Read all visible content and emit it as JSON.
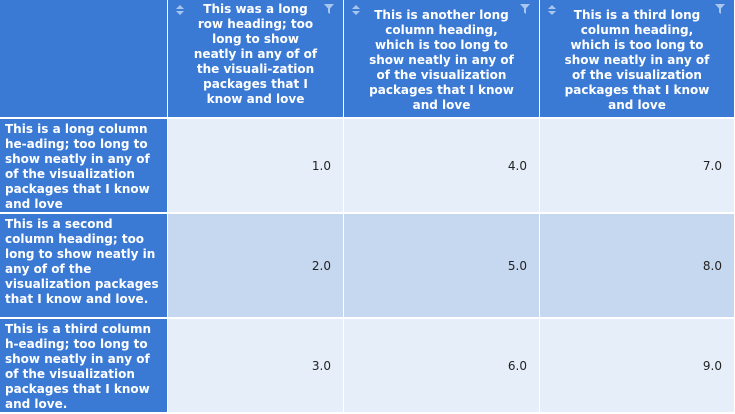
{
  "table": {
    "columns": [
      {
        "label": "This was a long row heading; too long to show neatly in any of of the visuali-zation packages that I know and love"
      },
      {
        "label": "This is another long column heading, which is too long to show neatly in any of of the visualization packages that I know and love"
      },
      {
        "label": "This is a third long column heading, which is too long to show neatly in any of of the visualization packages that I know and love"
      }
    ],
    "rows": [
      {
        "header": "This is a long column he-ading; too long to show neatly in any of of the visualization packages that I know and love",
        "values": [
          "1.0",
          "4.0",
          "7.0"
        ]
      },
      {
        "header": "This is a second column heading; too long to show neatly in any of of the visualization packages that I know and love.",
        "values": [
          "2.0",
          "5.0",
          "8.0"
        ]
      },
      {
        "header": "This is a third column h-eading; too long to show neatly in any of of the visualization packages that I know and love.",
        "values": [
          "3.0",
          "6.0",
          "9.0"
        ]
      }
    ]
  },
  "colors": {
    "header_bg": "#3a7ad5",
    "row_light": "#e6eff9",
    "row_dark": "#c5d8f0"
  },
  "icons": {
    "sort": "sort-icon",
    "filter": "filter-icon"
  }
}
